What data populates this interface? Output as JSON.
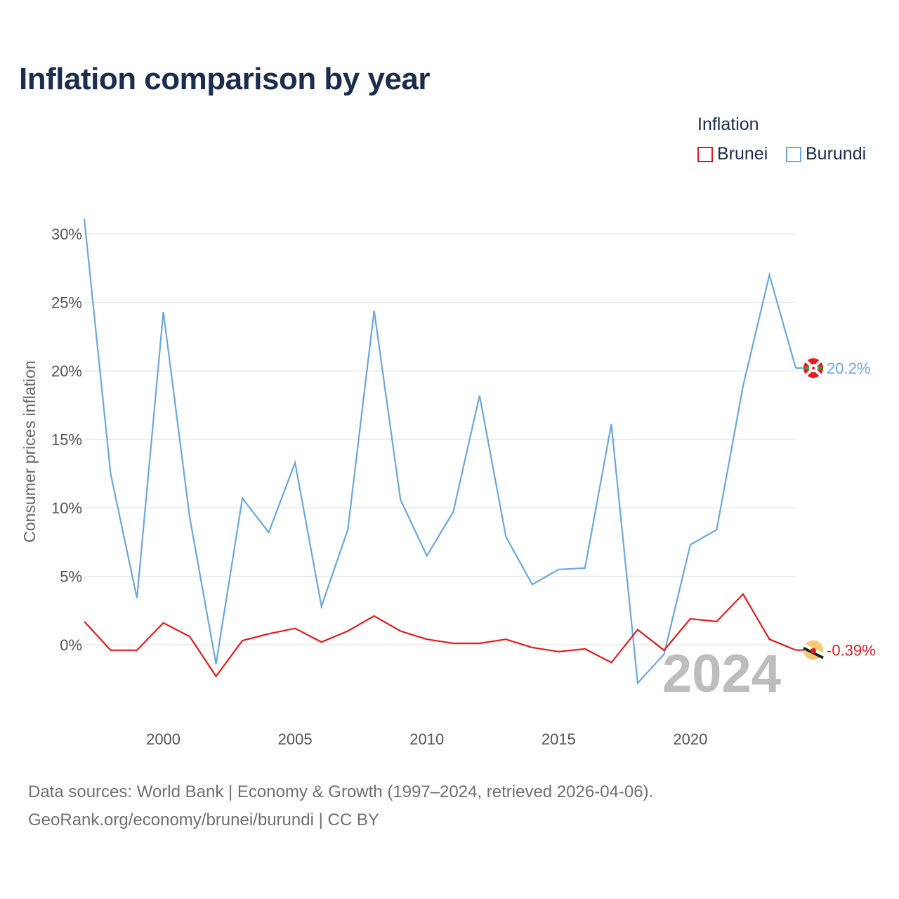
{
  "title": "Inflation comparison by year",
  "legend": {
    "title": "Inflation",
    "items": [
      {
        "label": "Brunei",
        "color": "#e8191b"
      },
      {
        "label": "Burundi",
        "color": "#6ba8e0"
      }
    ]
  },
  "source": {
    "line1": "Data sources: World Bank | Economy & Growth (1997–2024, retrieved 2026-04-06).",
    "line2": "GeoRank.org/economy/brunei/burundi | CC BY"
  },
  "chart_data": {
    "type": "line",
    "title": "Inflation comparison by year",
    "xlabel": "",
    "ylabel": "Consumer prices inflation",
    "x": [
      1997,
      1998,
      1999,
      2000,
      2001,
      2002,
      2003,
      2004,
      2005,
      2006,
      2007,
      2008,
      2009,
      2010,
      2011,
      2012,
      2013,
      2014,
      2015,
      2016,
      2017,
      2018,
      2019,
      2020,
      2021,
      2022,
      2023,
      2024
    ],
    "xlim": [
      1997,
      2024
    ],
    "ylim": [
      -5,
      31
    ],
    "xticks": [
      2000,
      2005,
      2010,
      2015,
      2020
    ],
    "yticks": [
      0,
      5,
      10,
      15,
      20,
      25,
      30
    ],
    "ytick_labels": [
      "0%",
      "5%",
      "10%",
      "15%",
      "20%",
      "25%",
      "30%"
    ],
    "grid": true,
    "current_year": "2024",
    "series": [
      {
        "name": "Burundi",
        "color": "#6ba8e0",
        "end_label": "20.2%",
        "values": [
          31.1,
          12.5,
          3.4,
          24.3,
          9.3,
          -1.4,
          10.7,
          8.2,
          13.3,
          2.8,
          8.4,
          24.4,
          10.6,
          6.5,
          9.7,
          18.2,
          7.9,
          4.4,
          5.5,
          5.6,
          16.1,
          -2.8,
          -0.7,
          7.3,
          8.4,
          18.9,
          27.0,
          20.2
        ]
      },
      {
        "name": "Brunei",
        "color": "#e8191b",
        "end_label": "-0.39%",
        "values": [
          1.7,
          -0.4,
          -0.4,
          1.6,
          0.6,
          -2.3,
          0.3,
          0.8,
          1.2,
          0.2,
          1.0,
          2.1,
          1.0,
          0.4,
          0.1,
          0.1,
          0.4,
          -0.2,
          -0.5,
          -0.3,
          -1.3,
          1.1,
          -0.4,
          1.9,
          1.7,
          3.7,
          0.4,
          -0.39
        ]
      }
    ]
  }
}
